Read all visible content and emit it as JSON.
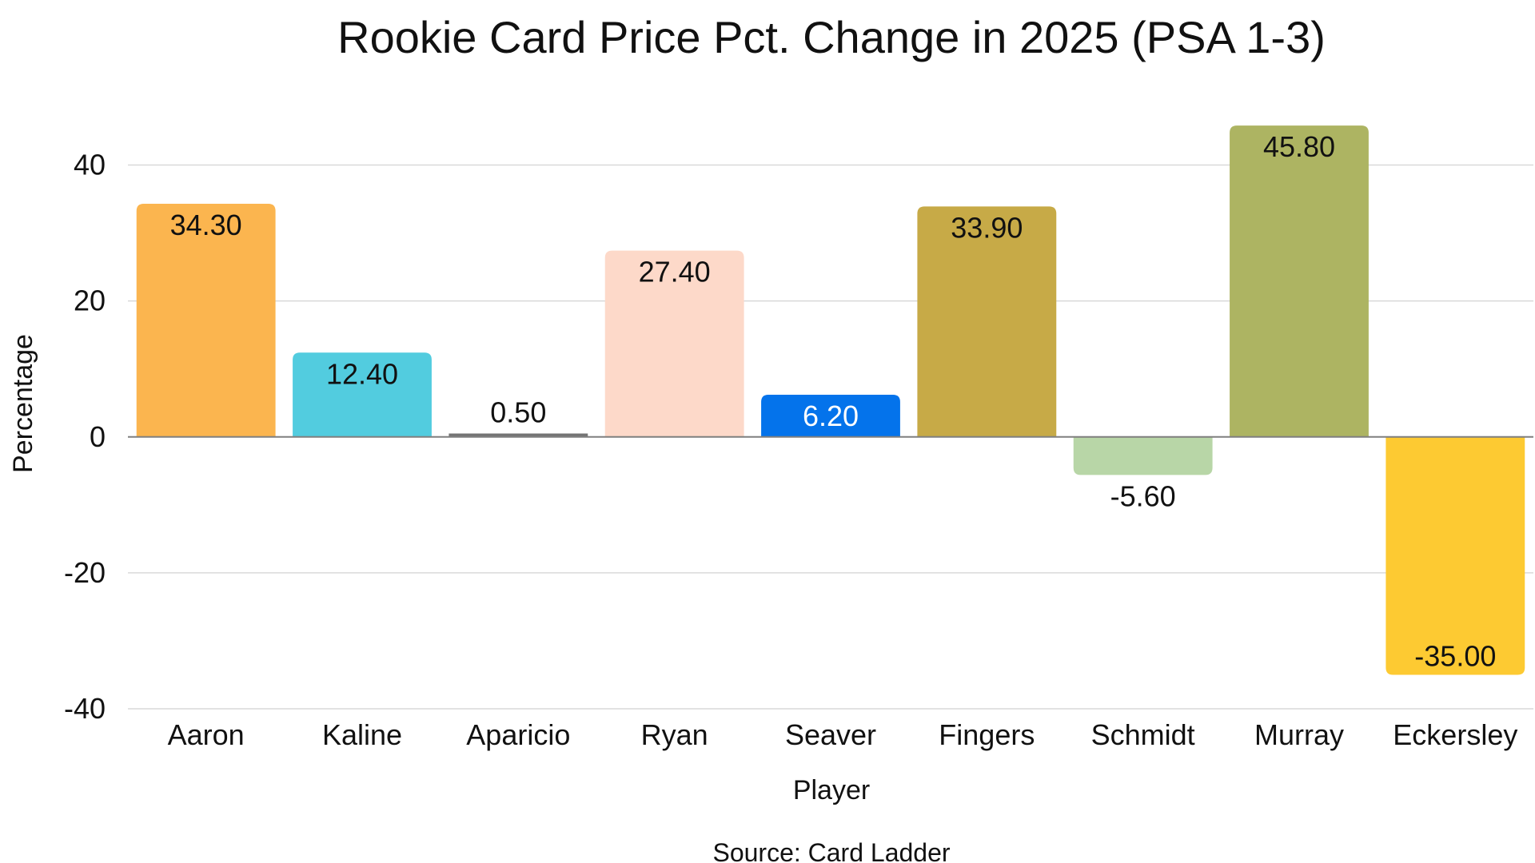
{
  "chart_data": {
    "type": "bar",
    "title": "Rookie Card Price Pct. Change in 2025 (PSA 1-3)",
    "xlabel": "Player",
    "ylabel": "Percentage",
    "source": "Source: Card Ladder",
    "ylim": [
      -40,
      50
    ],
    "yticks": [
      {
        "value": 40,
        "label": "40"
      },
      {
        "value": 20,
        "label": "20"
      },
      {
        "value": 0,
        "label": "0"
      },
      {
        "value": -20,
        "label": "-20"
      },
      {
        "value": -40,
        "label": "-40"
      }
    ],
    "grid": true,
    "legend": "none",
    "categories": [
      "Aaron",
      "Kaline",
      "Aparicio",
      "Ryan",
      "Seaver",
      "Fingers",
      "Schmidt",
      "Murray",
      "Eckersley"
    ],
    "values": [
      34.3,
      12.4,
      0.5,
      27.4,
      6.2,
      33.9,
      -5.6,
      45.8,
      -35.0
    ],
    "data_labels": [
      "34.30",
      "12.40",
      "0.50",
      "27.40",
      "6.20",
      "33.90",
      "-5.60",
      "45.80",
      "-35.00"
    ],
    "colors": [
      "#FBB54F",
      "#52CCDF",
      "#747474",
      "#FDD9C9",
      "#0473EB",
      "#C7AA47",
      "#B8D6A7",
      "#ADB462",
      "#FDCA32"
    ],
    "label_colors": [
      "#111111",
      "#111111",
      "#111111",
      "#111111",
      "#ffffff",
      "#111111",
      "#111111",
      "#111111",
      "#111111"
    ],
    "gridline_color": "#D9D9D9",
    "zero_line_color": "#7F7F7F"
  }
}
